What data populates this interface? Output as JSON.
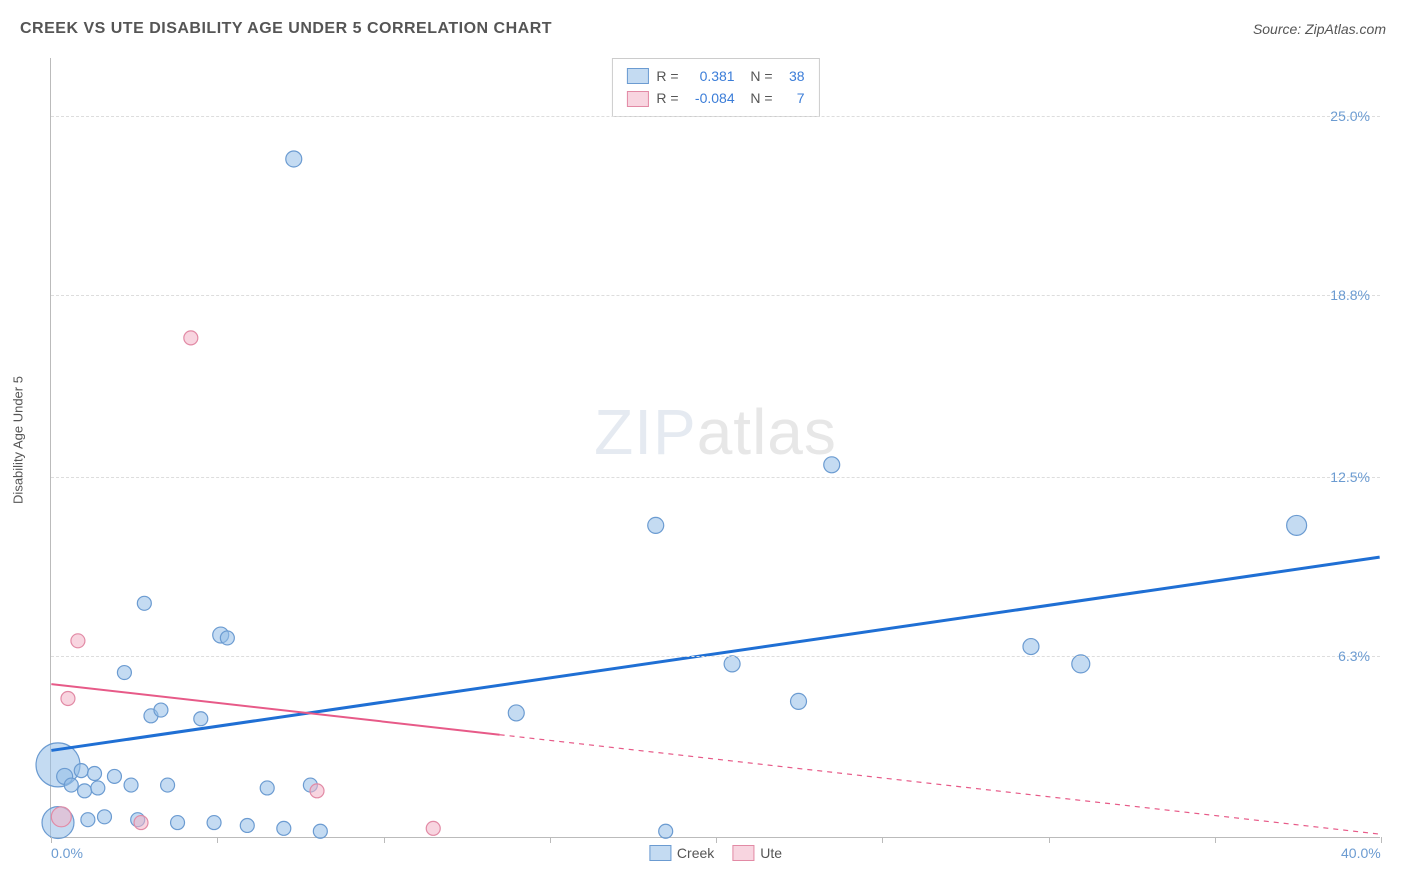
{
  "title": "CREEK VS UTE DISABILITY AGE UNDER 5 CORRELATION CHART",
  "source": "Source: ZipAtlas.com",
  "ylabel": "Disability Age Under 5",
  "watermark": {
    "bold": "ZIP",
    "light": "atlas"
  },
  "chart": {
    "type": "scatter",
    "xlim": [
      0,
      40
    ],
    "ylim": [
      0,
      27
    ],
    "xtick_labels": [
      {
        "value": 0,
        "label": "0.0%"
      },
      {
        "value": 40,
        "label": "40.0%"
      }
    ],
    "xtick_marks": [
      0,
      5,
      10,
      15,
      20,
      25,
      30,
      35,
      40
    ],
    "ytick_labels": [
      {
        "value": 6.3,
        "label": "6.3%"
      },
      {
        "value": 12.5,
        "label": "12.5%"
      },
      {
        "value": 18.8,
        "label": "18.8%"
      },
      {
        "value": 25.0,
        "label": "25.0%"
      }
    ],
    "grid_color": "#dddddd",
    "background_color": "#ffffff",
    "series": [
      {
        "name": "Creek",
        "marker_fill": "rgba(147,189,232,0.55)",
        "marker_stroke": "#6b9bd1",
        "line_color": "#1f6fd4",
        "line_width": 3,
        "r_value": "0.381",
        "n_value": "38",
        "trend": {
          "x1": 0,
          "y1": 3.0,
          "x2": 40,
          "y2": 9.7,
          "dashed_from_x": null
        },
        "points": [
          {
            "x": 0.2,
            "y": 2.5,
            "r": 22
          },
          {
            "x": 0.2,
            "y": 0.5,
            "r": 16
          },
          {
            "x": 0.4,
            "y": 2.1,
            "r": 8
          },
          {
            "x": 0.6,
            "y": 1.8,
            "r": 7
          },
          {
            "x": 0.9,
            "y": 2.3,
            "r": 7
          },
          {
            "x": 1.0,
            "y": 1.6,
            "r": 7
          },
          {
            "x": 1.1,
            "y": 0.6,
            "r": 7
          },
          {
            "x": 1.3,
            "y": 2.2,
            "r": 7
          },
          {
            "x": 1.4,
            "y": 1.7,
            "r": 7
          },
          {
            "x": 1.6,
            "y": 0.7,
            "r": 7
          },
          {
            "x": 1.9,
            "y": 2.1,
            "r": 7
          },
          {
            "x": 2.2,
            "y": 5.7,
            "r": 7
          },
          {
            "x": 2.4,
            "y": 1.8,
            "r": 7
          },
          {
            "x": 2.6,
            "y": 0.6,
            "r": 7
          },
          {
            "x": 2.8,
            "y": 8.1,
            "r": 7
          },
          {
            "x": 3.0,
            "y": 4.2,
            "r": 7
          },
          {
            "x": 3.3,
            "y": 4.4,
            "r": 7
          },
          {
            "x": 3.5,
            "y": 1.8,
            "r": 7
          },
          {
            "x": 3.8,
            "y": 0.5,
            "r": 7
          },
          {
            "x": 4.5,
            "y": 4.1,
            "r": 7
          },
          {
            "x": 4.9,
            "y": 0.5,
            "r": 7
          },
          {
            "x": 5.1,
            "y": 7.0,
            "r": 8
          },
          {
            "x": 5.3,
            "y": 6.9,
            "r": 7
          },
          {
            "x": 5.9,
            "y": 0.4,
            "r": 7
          },
          {
            "x": 6.5,
            "y": 1.7,
            "r": 7
          },
          {
            "x": 7.0,
            "y": 0.3,
            "r": 7
          },
          {
            "x": 7.3,
            "y": 23.5,
            "r": 8
          },
          {
            "x": 7.8,
            "y": 1.8,
            "r": 7
          },
          {
            "x": 8.1,
            "y": 0.2,
            "r": 7
          },
          {
            "x": 14.0,
            "y": 4.3,
            "r": 8
          },
          {
            "x": 18.2,
            "y": 10.8,
            "r": 8
          },
          {
            "x": 18.5,
            "y": 0.2,
            "r": 7
          },
          {
            "x": 20.5,
            "y": 6.0,
            "r": 8
          },
          {
            "x": 22.5,
            "y": 4.7,
            "r": 8
          },
          {
            "x": 23.5,
            "y": 12.9,
            "r": 8
          },
          {
            "x": 29.5,
            "y": 6.6,
            "r": 8
          },
          {
            "x": 31.0,
            "y": 6.0,
            "r": 9
          },
          {
            "x": 37.5,
            "y": 10.8,
            "r": 10
          }
        ]
      },
      {
        "name": "Ute",
        "marker_fill": "rgba(242,178,198,0.55)",
        "marker_stroke": "#e28aa5",
        "line_color": "#e75a88",
        "line_width": 2,
        "r_value": "-0.084",
        "n_value": "7",
        "trend": {
          "x1": 0,
          "y1": 5.3,
          "x2": 40,
          "y2": 0.1,
          "dashed_from_x": 13.5
        },
        "points": [
          {
            "x": 0.3,
            "y": 0.7,
            "r": 10
          },
          {
            "x": 0.5,
            "y": 4.8,
            "r": 7
          },
          {
            "x": 0.8,
            "y": 6.8,
            "r": 7
          },
          {
            "x": 2.7,
            "y": 0.5,
            "r": 7
          },
          {
            "x": 4.2,
            "y": 17.3,
            "r": 7
          },
          {
            "x": 8.0,
            "y": 1.6,
            "r": 7
          },
          {
            "x": 11.5,
            "y": 0.3,
            "r": 7
          }
        ]
      }
    ]
  },
  "bottom_legend": [
    {
      "label": "Creek",
      "fill": "rgba(147,189,232,0.55)",
      "stroke": "#6b9bd1"
    },
    {
      "label": "Ute",
      "fill": "rgba(242,178,198,0.55)",
      "stroke": "#e28aa5"
    }
  ]
}
